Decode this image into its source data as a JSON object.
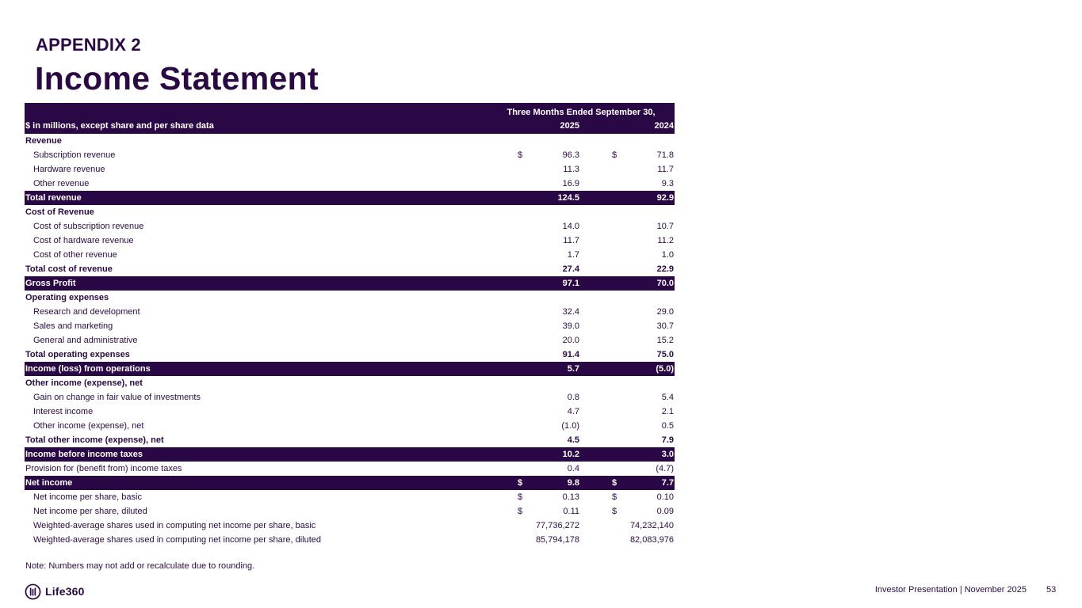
{
  "header": {
    "appendix": "APPENDIX 2",
    "title": "Income Statement"
  },
  "table": {
    "period_title": "Three Months Ended September 30,",
    "label_header": "$ in millions, except share and per share data",
    "col1_header": "2025",
    "col2_header": "2024",
    "rows": [
      {
        "label": "Revenue",
        "style": "bold",
        "c1": "",
        "c2": "",
        "cur1": "",
        "cur2": ""
      },
      {
        "label": "Subscription revenue",
        "style": "indent",
        "c1": "96.3",
        "c2": "71.8",
        "cur1": "$",
        "cur2": "$"
      },
      {
        "label": "Hardware revenue",
        "style": "indent",
        "c1": "11.3",
        "c2": "11.7",
        "cur1": "",
        "cur2": ""
      },
      {
        "label": "Other revenue",
        "style": "indent",
        "c1": "16.9",
        "c2": "9.3",
        "cur1": "",
        "cur2": ""
      },
      {
        "label": "Total revenue",
        "style": "band",
        "c1": "124.5",
        "c2": "92.9",
        "cur1": "",
        "cur2": ""
      },
      {
        "label": "Cost of Revenue",
        "style": "bold",
        "c1": "",
        "c2": "",
        "cur1": "",
        "cur2": ""
      },
      {
        "label": "Cost of subscription revenue",
        "style": "indent",
        "c1": "14.0",
        "c2": "10.7",
        "cur1": "",
        "cur2": ""
      },
      {
        "label": "Cost of hardware revenue",
        "style": "indent",
        "c1": "11.7",
        "c2": "11.2",
        "cur1": "",
        "cur2": ""
      },
      {
        "label": "Cost of other revenue",
        "style": "indent",
        "c1": "1.7",
        "c2": "1.0",
        "cur1": "",
        "cur2": ""
      },
      {
        "label": "Total cost of revenue",
        "style": "bold",
        "c1": "27.4",
        "c2": "22.9",
        "cur1": "",
        "cur2": ""
      },
      {
        "label": "Gross Profit",
        "style": "band",
        "c1": "97.1",
        "c2": "70.0",
        "cur1": "",
        "cur2": ""
      },
      {
        "label": "Operating expenses",
        "style": "bold",
        "c1": "",
        "c2": "",
        "cur1": "",
        "cur2": ""
      },
      {
        "label": "Research and development",
        "style": "indent",
        "c1": "32.4",
        "c2": "29.0",
        "cur1": "",
        "cur2": ""
      },
      {
        "label": "Sales and marketing",
        "style": "indent",
        "c1": "39.0",
        "c2": "30.7",
        "cur1": "",
        "cur2": ""
      },
      {
        "label": "General and administrative",
        "style": "indent",
        "c1": "20.0",
        "c2": "15.2",
        "cur1": "",
        "cur2": ""
      },
      {
        "label": "Total operating expenses",
        "style": "bold",
        "c1": "91.4",
        "c2": "75.0",
        "cur1": "",
        "cur2": ""
      },
      {
        "label": "Income (loss) from operations",
        "style": "band",
        "c1": "5.7",
        "c2": "(5.0)",
        "cur1": "",
        "cur2": ""
      },
      {
        "label": "Other income (expense), net",
        "style": "bold",
        "c1": "",
        "c2": "",
        "cur1": "",
        "cur2": ""
      },
      {
        "label": "Gain on change in fair value of investments",
        "style": "indent",
        "c1": "0.8",
        "c2": "5.4",
        "cur1": "",
        "cur2": ""
      },
      {
        "label": "Interest income",
        "style": "indent",
        "c1": "4.7",
        "c2": "2.1",
        "cur1": "",
        "cur2": ""
      },
      {
        "label": "Other income (expense), net",
        "style": "indent",
        "c1": "(1.0)",
        "c2": "0.5",
        "cur1": "",
        "cur2": ""
      },
      {
        "label": "Total other income (expense), net",
        "style": "bold",
        "c1": "4.5",
        "c2": "7.9",
        "cur1": "",
        "cur2": ""
      },
      {
        "label": "Income before income taxes",
        "style": "band",
        "c1": "10.2",
        "c2": "3.0",
        "cur1": "",
        "cur2": ""
      },
      {
        "label": "Provision for (benefit from) income taxes",
        "style": "plain",
        "c1": "0.4",
        "c2": "(4.7)",
        "cur1": "",
        "cur2": ""
      },
      {
        "label": "Net income",
        "style": "band",
        "c1": "9.8",
        "c2": "7.7",
        "cur1": "$",
        "cur2": "$"
      },
      {
        "label": "Net income per share, basic",
        "style": "indent",
        "c1": "0.13",
        "c2": "0.10",
        "cur1": "$",
        "cur2": "$"
      },
      {
        "label": "Net income per share, diluted",
        "style": "indent",
        "c1": "0.11",
        "c2": "0.09",
        "cur1": "$",
        "cur2": "$"
      },
      {
        "label": "Weighted-average shares used in computing net income per share, basic",
        "style": "indent",
        "c1": "77,736,272",
        "c2": "74,232,140",
        "cur1": "",
        "cur2": ""
      },
      {
        "label": "Weighted-average shares used in computing net income per share, diluted",
        "style": "indent",
        "c1": "85,794,178",
        "c2": "82,083,976",
        "cur1": "",
        "cur2": ""
      }
    ]
  },
  "note": "Note: Numbers may not add or recalculate due to rounding.",
  "footer": {
    "brand": "Life360",
    "logo_icon": "life360-logo-icon",
    "text": "Investor Presentation  | November 2025",
    "page_number": "53"
  },
  "colors": {
    "primary": "#2a0845",
    "text": "#2b0a44"
  }
}
